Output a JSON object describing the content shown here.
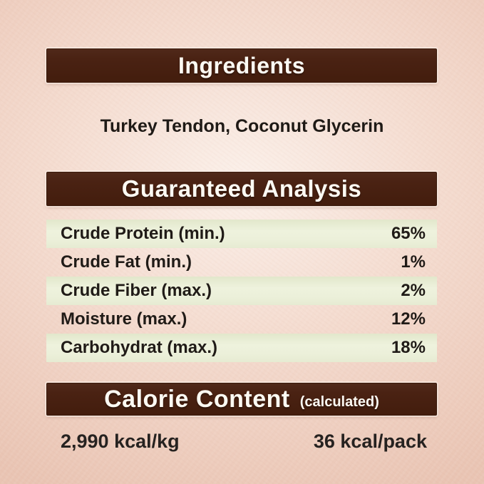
{
  "theme": {
    "background_color": "#f0d5c7",
    "background_edge_color": "#e9c4b3",
    "bar_color": "#4a2213",
    "bar_text_color": "#fdfaf3",
    "row_highlight_color": "#eaefd8",
    "text_color": "#201b17"
  },
  "sections": {
    "ingredients": {
      "title": "Ingredients",
      "content": "Turkey Tendon, Coconut Glycerin"
    },
    "guaranteed_analysis": {
      "title": "Guaranteed Analysis",
      "rows": [
        {
          "label": "Crude Protein (min.)",
          "value": "65%"
        },
        {
          "label": "Crude Fat (min.)",
          "value": "1%"
        },
        {
          "label": "Crude Fiber (max.)",
          "value": "2%"
        },
        {
          "label": "Moisture (max.)",
          "value": "12%"
        },
        {
          "label": "Carbohydrat (max.)",
          "value": "18%"
        }
      ]
    },
    "calorie_content": {
      "title": "Calorie Content",
      "subtitle": "(calculated)",
      "per_kg": "2,990 kcal/kg",
      "per_pack": "36 kcal/pack"
    }
  }
}
